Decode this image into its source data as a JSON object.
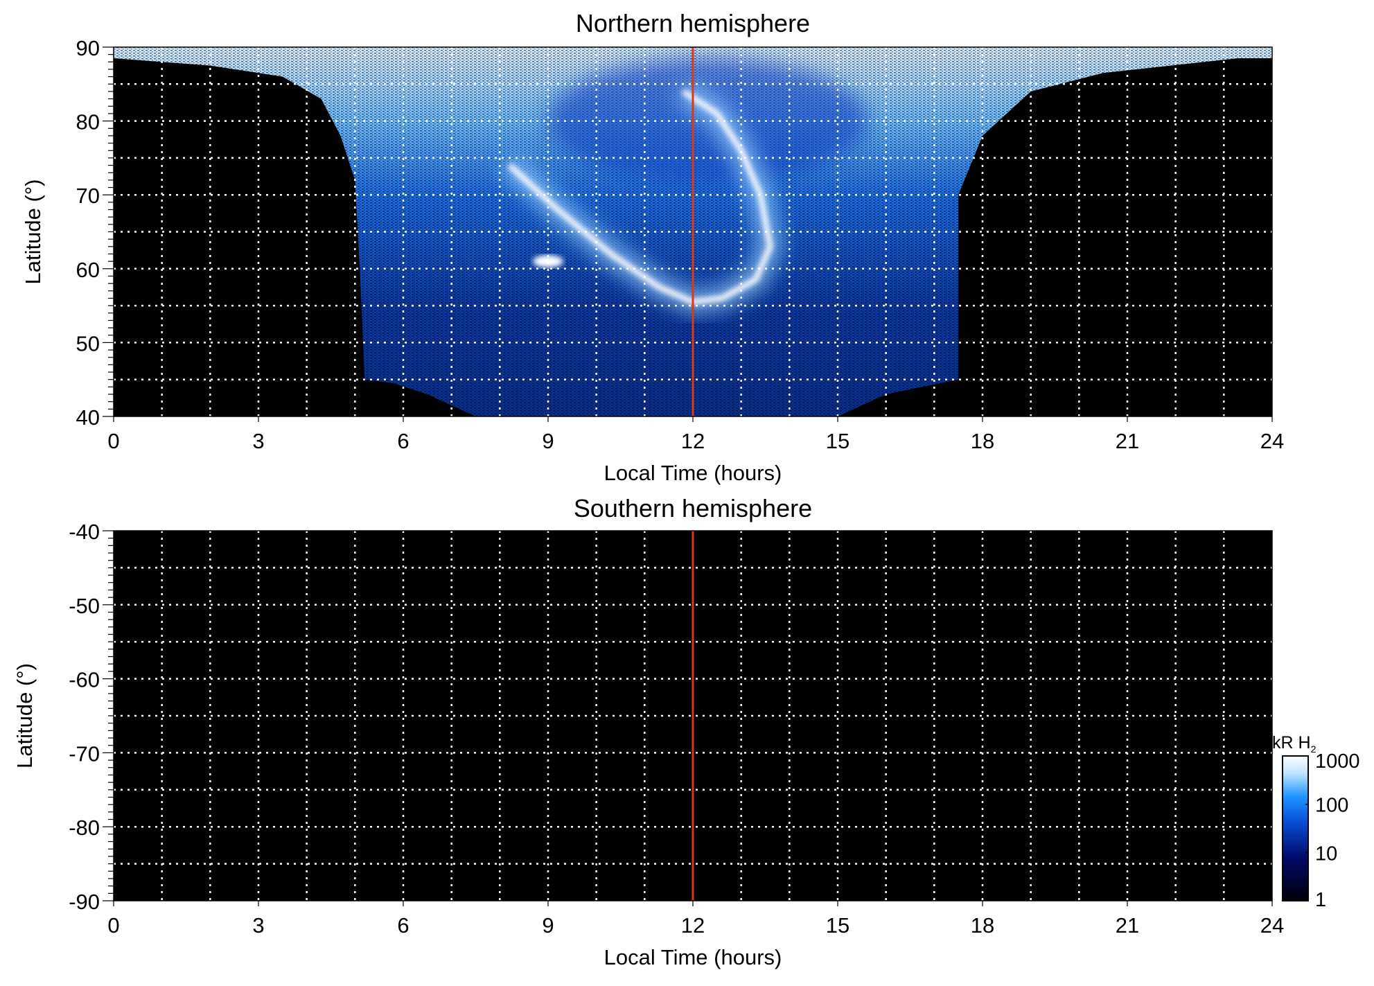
{
  "chart_data": [
    {
      "type": "heatmap",
      "title": "Northern hemisphere",
      "xlabel": "Local Time (hours)",
      "ylabel": "Latitude (°)",
      "xlim": [
        0,
        24
      ],
      "ylim": [
        40,
        90
      ],
      "xticks": [
        "0",
        "3",
        "6",
        "9",
        "12",
        "15",
        "18",
        "21",
        "24"
      ],
      "yticks": [
        "40",
        "50",
        "60",
        "70",
        "80",
        "90"
      ],
      "grid": true,
      "marker_line_x": 12,
      "emission_boundary": [
        [
          0,
          88.5
        ],
        [
          2,
          87.5
        ],
        [
          3.5,
          86
        ],
        [
          4.3,
          83
        ],
        [
          4.7,
          78
        ],
        [
          5,
          72
        ],
        [
          5.1,
          60
        ],
        [
          5.2,
          45
        ],
        [
          5.8,
          44.5
        ],
        [
          6.5,
          43
        ],
        [
          7.5,
          40
        ],
        [
          15,
          40
        ],
        [
          16,
          43
        ],
        [
          17.5,
          45
        ],
        [
          17.5,
          70
        ],
        [
          18,
          78
        ],
        [
          19,
          84
        ],
        [
          20.5,
          86.5
        ],
        [
          23.3,
          88.5
        ],
        [
          24,
          88.5
        ],
        [
          24,
          90
        ],
        [
          0,
          90
        ]
      ],
      "bright_arc": [
        [
          8.2,
          74
        ],
        [
          9.2,
          68
        ],
        [
          10.3,
          62
        ],
        [
          11.3,
          57.5
        ],
        [
          12,
          55.5
        ],
        [
          12.6,
          56
        ],
        [
          13.3,
          58.5
        ],
        [
          13.6,
          63
        ],
        [
          13.4,
          70
        ],
        [
          13,
          76
        ],
        [
          12.5,
          81
        ],
        [
          11.8,
          84
        ]
      ],
      "bright_spot": [
        9,
        61
      ]
    },
    {
      "type": "heatmap",
      "title": "Southern hemisphere",
      "xlabel": "Local Time (hours)",
      "ylabel": "Latitude (°)",
      "xlim": [
        0,
        24
      ],
      "ylim": [
        -90,
        -40
      ],
      "xticks": [
        "0",
        "3",
        "6",
        "9",
        "12",
        "15",
        "18",
        "21",
        "24"
      ],
      "yticks": [
        "-40",
        "-50",
        "-60",
        "-70",
        "-80",
        "-90"
      ],
      "grid": true,
      "marker_line_x": 12
    }
  ],
  "colorbar": {
    "label": "kR H",
    "label_sub": "2",
    "scale": "log",
    "range": [
      1,
      1000
    ],
    "ticks": [
      "1000",
      "100",
      "10",
      "1"
    ],
    "colors": [
      "#000008",
      "#000a6a",
      "#0a4fd8",
      "#1e96ff",
      "#bfe3ff",
      "#ffffff"
    ]
  },
  "colors": {
    "marker_line": "#d8391c",
    "grid": "#ffffff",
    "background": "#000000"
  }
}
